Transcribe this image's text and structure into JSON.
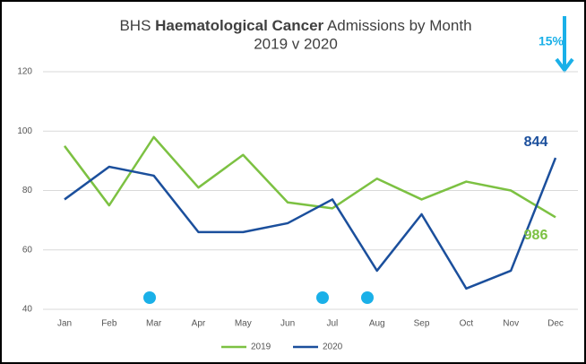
{
  "chart_data": {
    "type": "line",
    "title": [
      "BHS ",
      "Haematological Cancer",
      " Admissions by Month"
    ],
    "subtitle": "2019 v 2020",
    "categories": [
      "Jan",
      "Feb",
      "Mar",
      "Apr",
      "May",
      "Jun",
      "Jul",
      "Aug",
      "Sep",
      "Oct",
      "Nov",
      "Dec"
    ],
    "series": [
      {
        "name": "2019",
        "color": "#7cc142",
        "values": [
          95,
          75,
          98,
          81,
          92,
          76,
          74,
          84,
          77,
          83,
          80,
          71
        ]
      },
      {
        "name": "2020",
        "color": "#1b4f9c",
        "values": [
          77,
          88,
          85,
          66,
          66,
          69,
          77,
          53,
          72,
          47,
          53,
          91
        ]
      }
    ],
    "ylim": [
      40,
      120
    ],
    "yticks": [
      40,
      60,
      80,
      100,
      120
    ],
    "grid": true,
    "legend": "bottom",
    "annotations": [
      {
        "text": "844",
        "color": "#1b4f9c"
      },
      {
        "text": "986",
        "color": "#7cc142"
      },
      {
        "text": "15%",
        "color": "#1ab0e8"
      }
    ]
  }
}
